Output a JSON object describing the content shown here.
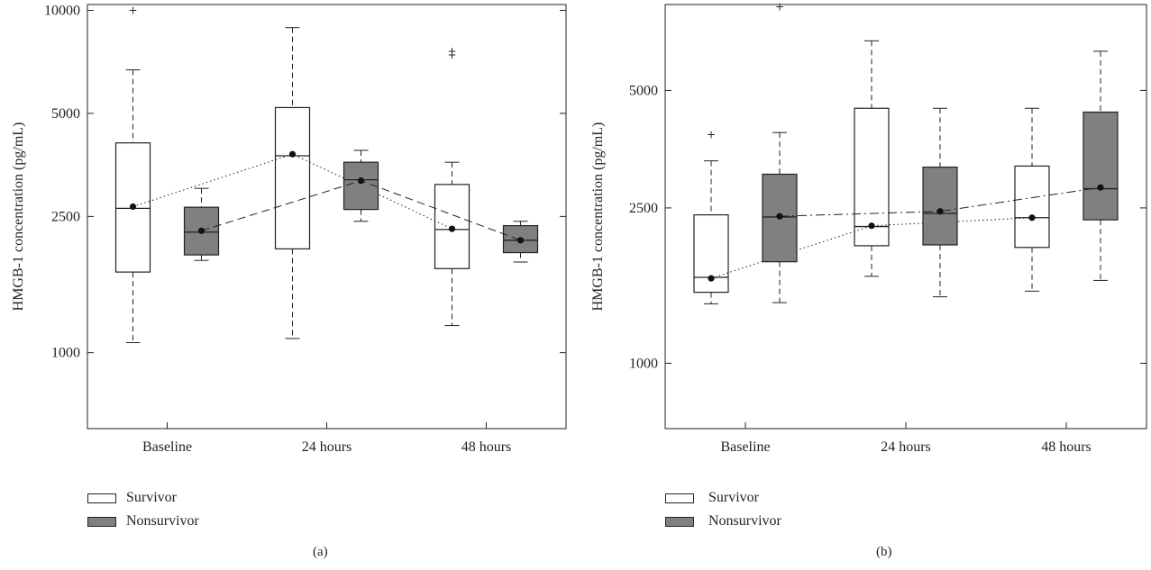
{
  "colors": {
    "survivor_fill": "#ffffff",
    "nonsurvivor_fill": "#808080",
    "stroke": "#222222"
  },
  "chart_data": [
    {
      "type": "box",
      "panel_label": "(a)",
      "ylabel": "HMGB-1 concentration (pg/mL)",
      "yscale": "log",
      "ylim": [
        600,
        10400
      ],
      "yticks": [
        1000,
        2500,
        5000,
        10000
      ],
      "ytick_labels": [
        "1000",
        "2500",
        "5000",
        "10000"
      ],
      "categories": [
        "Baseline",
        "24 hours",
        "48 hours"
      ],
      "legend": {
        "placement": "bottom-left",
        "entries": [
          "Survivor",
          "Nonsurvivor"
        ]
      },
      "series": [
        {
          "name": "Survivor",
          "mean_line": "dotted",
          "boxes": [
            {
              "whisker_low": 1070,
              "q1": 1720,
              "median": 2640,
              "q3": 4100,
              "whisker_high": 6700,
              "mean": 2670,
              "outliers": [
                10000
              ]
            },
            {
              "whisker_low": 1100,
              "q1": 2010,
              "median": 3760,
              "q3": 5200,
              "whisker_high": 8900,
              "mean": 3800,
              "outliers": []
            },
            {
              "whisker_low": 1200,
              "q1": 1760,
              "median": 2290,
              "q3": 3100,
              "whisker_high": 3600,
              "mean": 2300,
              "outliers": [
                7400,
                7600
              ]
            }
          ]
        },
        {
          "name": "Nonsurvivor",
          "mean_line": "dashed",
          "boxes": [
            {
              "whisker_low": 1860,
              "q1": 1930,
              "median": 2250,
              "q3": 2660,
              "whisker_high": 3020,
              "mean": 2270,
              "outliers": []
            },
            {
              "whisker_low": 2420,
              "q1": 2620,
              "median": 3200,
              "q3": 3600,
              "whisker_high": 3900,
              "mean": 3180,
              "outliers": []
            },
            {
              "whisker_low": 1840,
              "q1": 1960,
              "median": 2130,
              "q3": 2350,
              "whisker_high": 2420,
              "mean": 2130,
              "outliers": []
            }
          ]
        }
      ]
    },
    {
      "type": "box",
      "panel_label": "(b)",
      "ylabel": "HMGB-1 concentration (pg/mL)",
      "yscale": "log",
      "ylim": [
        680,
        8300
      ],
      "yticks": [
        1000,
        2500,
        5000
      ],
      "ytick_labels": [
        "1000",
        "2500",
        "5000"
      ],
      "categories": [
        "Baseline",
        "24 hours",
        "48 hours"
      ],
      "legend": {
        "placement": "bottom-left",
        "entries": [
          "Survivor",
          "Nonsurvivor"
        ]
      },
      "series": [
        {
          "name": "Survivor",
          "mean_line": "dotted",
          "boxes": [
            {
              "whisker_low": 1420,
              "q1": 1520,
              "median": 1660,
              "q3": 2400,
              "whisker_high": 3300,
              "mean": 1650,
              "outliers": [
                3850
              ]
            },
            {
              "whisker_low": 1670,
              "q1": 2000,
              "median": 2240,
              "q3": 4500,
              "whisker_high": 6700,
              "mean": 2250,
              "outliers": []
            },
            {
              "whisker_low": 1530,
              "q1": 1980,
              "median": 2360,
              "q3": 3200,
              "whisker_high": 4500,
              "mean": 2360,
              "outliers": []
            }
          ]
        },
        {
          "name": "Nonsurvivor",
          "mean_line": "dash-dot",
          "boxes": [
            {
              "whisker_low": 1430,
              "q1": 1820,
              "median": 2370,
              "q3": 3050,
              "whisker_high": 3900,
              "mean": 2380,
              "outliers": [
                8200
              ]
            },
            {
              "whisker_low": 1480,
              "q1": 2010,
              "median": 2420,
              "q3": 3180,
              "whisker_high": 4500,
              "mean": 2450,
              "outliers": []
            },
            {
              "whisker_low": 1630,
              "q1": 2330,
              "median": 2800,
              "q3": 4400,
              "whisker_high": 6300,
              "mean": 2820,
              "outliers": []
            }
          ]
        }
      ]
    }
  ]
}
